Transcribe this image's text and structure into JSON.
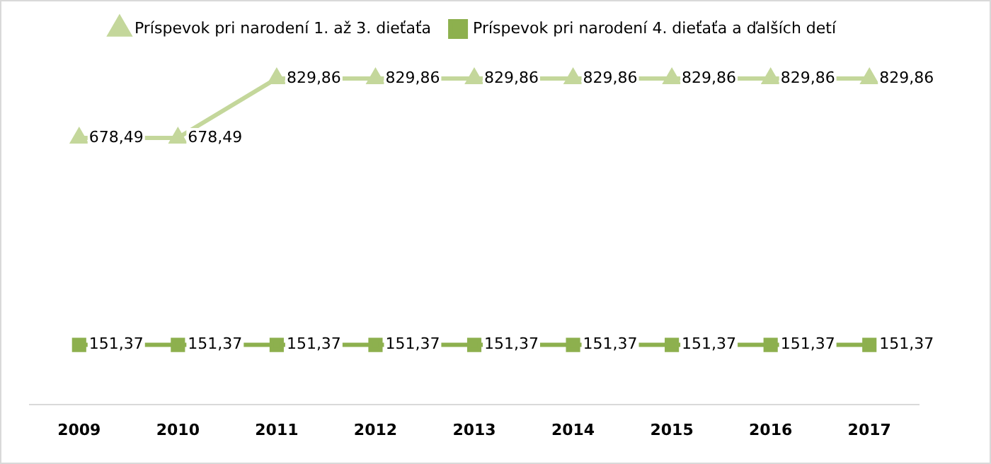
{
  "chart_data": {
    "type": "line",
    "categories": [
      "2009",
      "2010",
      "2011",
      "2012",
      "2013",
      "2014",
      "2015",
      "2016",
      "2017"
    ],
    "series": [
      {
        "name": "Príspevok pri narodení 1. až 3. dieťaťa",
        "color": "#c4d79b",
        "marker": "triangle",
        "values": [
          678.49,
          678.49,
          829.86,
          829.86,
          829.86,
          829.86,
          829.86,
          829.86,
          829.86
        ],
        "value_labels": [
          "678,49",
          "678,49",
          "829,86",
          "829,86",
          "829,86",
          "829,86",
          "829,86",
          "829,86",
          "829,86"
        ]
      },
      {
        "name": "Príspevok pri narodení 4. dieťaťa a ďalších detí",
        "color": "#8db04e",
        "marker": "square",
        "values": [
          151.37,
          151.37,
          151.37,
          151.37,
          151.37,
          151.37,
          151.37,
          151.37,
          151.37
        ],
        "value_labels": [
          "151,37",
          "151,37",
          "151,37",
          "151,37",
          "151,37",
          "151,37",
          "151,37",
          "151,37",
          "151,37"
        ]
      }
    ],
    "legend": "top",
    "grid": false,
    "tick_labels": "x"
  }
}
